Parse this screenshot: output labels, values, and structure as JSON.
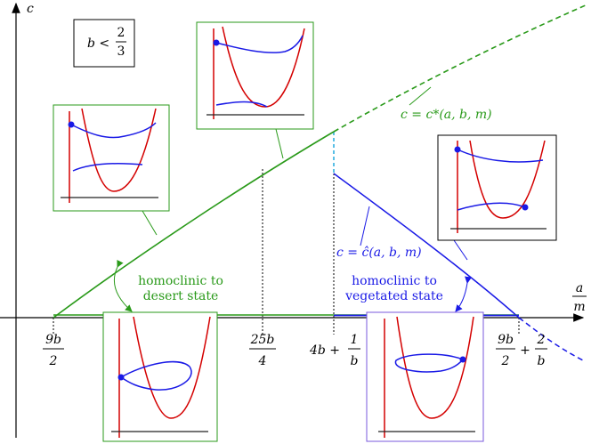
{
  "y_axis_label": "c",
  "x_axis_label": {
    "num": "a",
    "den": "m"
  },
  "condition": {
    "lhs": "b <",
    "num": "2",
    "den": "3"
  },
  "ticks": [
    {
      "num": "9b",
      "den": "2"
    },
    {
      "num": "25b",
      "den": "4"
    },
    {
      "prefix": "4b +",
      "num": "1",
      "den": "b"
    },
    {
      "num": "9b",
      "den": "2",
      "mid": "+",
      "num2": "2",
      "den2": "b"
    }
  ],
  "curves": [
    {
      "label": "c = c*(a, b, m)"
    },
    {
      "label": "c = ĉ(a, b, m)"
    }
  ],
  "regions": [
    {
      "lines": [
        "homoclinic to",
        "desert state"
      ]
    },
    {
      "lines": [
        "homoclinic to",
        "vegetated state"
      ]
    }
  ]
}
